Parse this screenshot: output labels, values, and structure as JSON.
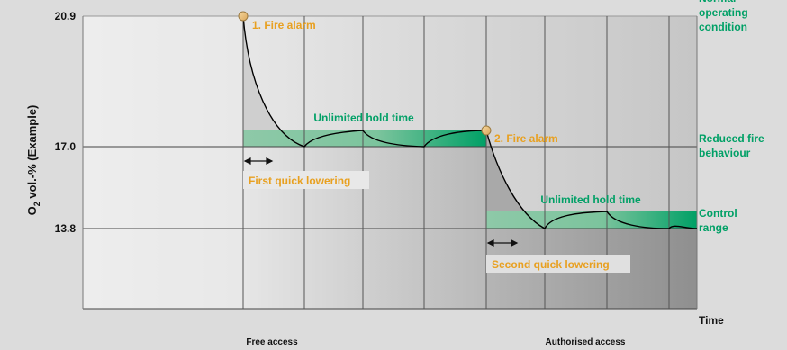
{
  "chart_data": {
    "type": "line",
    "title": "",
    "ylabel": "O2 vol.-% (Example)",
    "ylabel_main": "O",
    "ylabel_sub": "2",
    "ylabel_rest": " vol.-% (Example)",
    "xlabel": "Time",
    "y_ticks": [
      {
        "value": 20.9,
        "label": "20.9"
      },
      {
        "value": 17.0,
        "label": "17.0"
      },
      {
        "value": 13.8,
        "label": "13.8"
      }
    ],
    "ylim": [
      10.0,
      20.9
    ],
    "zones": [
      {
        "name": "Normal operating condition",
        "color": "#00a066"
      },
      {
        "name": "Reduced fire behaviour",
        "color": "#00a066"
      },
      {
        "name": "Control range",
        "color": "#00a066"
      }
    ],
    "x_sections": [
      "Free access",
      "Authorised access"
    ],
    "events": [
      {
        "label": "1. Fire alarm",
        "y": 20.9,
        "color": "#e8a020"
      },
      {
        "label": "2. Fire alarm",
        "y": 17.0,
        "color": "#e8a020"
      }
    ],
    "hold_time_labels": [
      "Unlimited hold time",
      "Unlimited hold time"
    ],
    "lowering_labels": [
      "First quick lowering",
      "Second quick lowering"
    ],
    "series": [
      {
        "x": [
          0,
          1.0,
          1.3,
          2.0,
          2.2,
          2.4,
          3.0,
          3.2,
          3.4,
          4.0,
          4.2,
          4.4,
          5.0,
          5.3,
          6.0,
          6.2,
          6.4,
          7.0,
          7.2,
          7.4,
          7.6
        ],
        "values": [
          20.9,
          20.9,
          17.9,
          17.0,
          17.5,
          17.6,
          17.7,
          17.3,
          17.2,
          17.1,
          17.5,
          17.7,
          17.7,
          15.0,
          13.8,
          14.3,
          14.4,
          14.4,
          13.9,
          13.8,
          13.8
        ]
      }
    ],
    "colors": {
      "accent_green": "#00a066",
      "accent_orange": "#e8a020",
      "band_green_light": "#8ec9a8",
      "text": "#111111"
    }
  }
}
